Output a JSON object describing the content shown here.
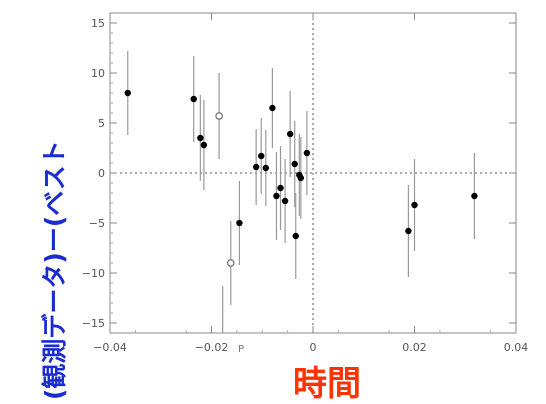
{
  "chart_data": {
    "type": "scatter",
    "title": "",
    "xlabel": "時間",
    "ylabel": "(観測データ)ー(ベスト",
    "x_axis_letter": "P",
    "xlim": [
      -0.04,
      0.04
    ],
    "ylim": [
      -16,
      16
    ],
    "x_ticks": [
      -0.04,
      -0.02,
      0,
      0.02,
      0.04
    ],
    "x_tick_labels": [
      "−0.04",
      "−0.02",
      "0",
      "0.02",
      "0.04"
    ],
    "y_ticks": [
      -15,
      -10,
      -5,
      0,
      5,
      10,
      15
    ],
    "y_tick_labels": [
      "−15",
      "−10",
      "−5",
      "0",
      "5",
      "10",
      "15"
    ],
    "reference_lines": {
      "x": 0,
      "y": 0,
      "style": "dotted"
    },
    "grid": false,
    "series": [
      {
        "marker": "filled-circle",
        "color": "#000000",
        "points": [
          {
            "x": -0.0365,
            "y": 8.0,
            "err": 4.2
          },
          {
            "x": -0.0235,
            "y": 7.4,
            "err": 4.3
          },
          {
            "x": -0.0222,
            "y": 3.5,
            "err": 4.3
          },
          {
            "x": -0.0215,
            "y": 2.8,
            "err": 4.5
          },
          {
            "x": -0.0145,
            "y": -5.0,
            "err": 4.2
          },
          {
            "x": -0.0112,
            "y": 0.6,
            "err": 3.8
          },
          {
            "x": -0.0102,
            "y": 1.7,
            "err": 3.8
          },
          {
            "x": -0.0093,
            "y": 0.5,
            "err": 3.8
          },
          {
            "x": -0.008,
            "y": 6.5,
            "err": 4.0
          },
          {
            "x": -0.0072,
            "y": -2.3,
            "err": 4.4
          },
          {
            "x": -0.0064,
            "y": -1.5,
            "err": 4.2
          },
          {
            "x": -0.0055,
            "y": -2.8,
            "err": 4.2
          },
          {
            "x": -0.0045,
            "y": 3.9,
            "err": 4.3
          },
          {
            "x": -0.0036,
            "y": 0.9,
            "err": 4.3
          },
          {
            "x": -0.0034,
            "y": -6.3,
            "err": 4.3
          },
          {
            "x": -0.0027,
            "y": -0.2,
            "err": 4.1
          },
          {
            "x": -0.0024,
            "y": -0.5,
            "err": 4.1
          },
          {
            "x": -0.0012,
            "y": 2.0,
            "err": 4.2
          },
          {
            "x": 0.0188,
            "y": -5.8,
            "err": 4.6
          },
          {
            "x": 0.02,
            "y": -3.2,
            "err": 4.6
          },
          {
            "x": 0.0318,
            "y": -2.3,
            "err": 4.3
          }
        ]
      },
      {
        "marker": "open-circle",
        "color": "#777777",
        "points": [
          {
            "x": -0.0185,
            "y": 5.7,
            "err": 4.3
          },
          {
            "x": -0.0162,
            "y": -9.0,
            "err": 4.2
          }
        ]
      }
    ],
    "extra_error_bars": [
      {
        "x": -0.0178,
        "y_low": -16.0,
        "y_high": -11.3
      }
    ]
  }
}
